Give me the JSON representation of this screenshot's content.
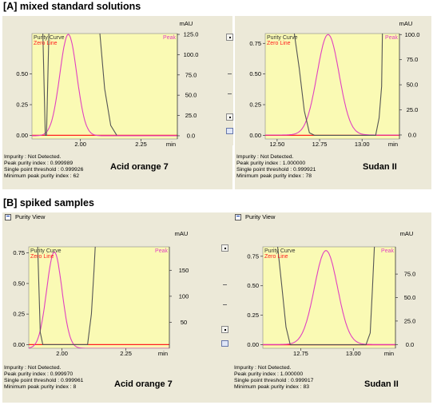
{
  "sections": [
    {
      "label": "[A] mixed standard solutions"
    },
    {
      "label": "[B] spiked samples"
    }
  ],
  "colors": {
    "plot_bg": "#fafab4",
    "purity_curve": "#555555",
    "peak": "#e040c0",
    "zero_line": "#ff2020",
    "window_bg": "#ece9d8"
  },
  "panels": [
    {
      "window_title": "",
      "compound": "Acid orange 7",
      "info": [
        "Impurity : Not Detected.",
        "Peak purity index : 0.999989",
        "Single point threshold : 0.999926",
        "Minimum peak purity index : 62"
      ],
      "chart_data": {
        "type": "line",
        "legend": [
          "Purity Curve",
          "Zero Line",
          "Peak"
        ],
        "x_ticks": [
          "2.00",
          "2.25"
        ],
        "x_unit": "min",
        "xlim": [
          1.8,
          2.4
        ],
        "y_left_ticks": [
          "0.00",
          "0.25",
          "0.50"
        ],
        "ylim_left": [
          -0.03,
          0.83
        ],
        "y_right_unit": "mAU",
        "y_right_ticks": [
          "0.0",
          "25.0",
          "50.0",
          "75.0",
          "100.0",
          "125.0"
        ],
        "ylim_right": [
          -4,
          126
        ],
        "peak": {
          "center": 1.95,
          "width": 0.035,
          "height": 125
        },
        "purity_curve": [
          {
            "x": 1.845,
            "y": 0.84
          },
          {
            "x": 1.855,
            "y": 0.0
          },
          {
            "x": 1.86,
            "y": 0.0
          },
          {
            "x": 1.87,
            "y": 0.84
          },
          {
            "x": 2.08,
            "y": 0.84
          },
          {
            "x": 2.1,
            "y": 0.38
          },
          {
            "x": 2.125,
            "y": 0.08
          },
          {
            "x": 2.15,
            "y": 0.0
          }
        ]
      }
    },
    {
      "window_title": "",
      "compound": "Sudan II",
      "info": [
        "Impurity : Not Detected.",
        "Peak purity index : 1.000000",
        "Single point threshold : 0.999921",
        "Minimum peak purity index : 78"
      ],
      "chart_data": {
        "type": "line",
        "legend": [
          "Purity Curve",
          "Zero Line",
          "Peak"
        ],
        "x_ticks": [
          "12.50",
          "12.75",
          "13.00"
        ],
        "x_unit": "min",
        "xlim": [
          12.43,
          13.22
        ],
        "y_left_ticks": [
          "0.00",
          "0.25",
          "0.50",
          "0.75"
        ],
        "ylim_left": [
          -0.03,
          0.83
        ],
        "y_right_unit": "mAU",
        "y_right_ticks": [
          "0.0",
          "25.0",
          "50.0",
          "75.0",
          "100.0"
        ],
        "ylim_right": [
          -4,
          101
        ],
        "peak": {
          "center": 12.8,
          "width": 0.065,
          "height": 100
        },
        "purity_curve": [
          {
            "x": 12.6,
            "y": 0.84
          },
          {
            "x": 12.63,
            "y": 0.55
          },
          {
            "x": 12.66,
            "y": 0.2
          },
          {
            "x": 12.69,
            "y": 0.02
          },
          {
            "x": 12.72,
            "y": 0.0
          },
          {
            "x": 13.08,
            "y": 0.0
          },
          {
            "x": 13.1,
            "y": 0.14
          },
          {
            "x": 13.115,
            "y": 0.4
          },
          {
            "x": 13.12,
            "y": 0.84
          }
        ]
      }
    },
    {
      "window_title": "Purity View",
      "compound": "Acid orange 7",
      "info": [
        "Impurity : Not Detected.",
        "Peak purity index : 0.999970",
        "Single point threshold : 0.999961",
        "Minimum peak purity index : 8"
      ],
      "chart_data": {
        "type": "line",
        "legend": [
          "Purity Curve",
          "Zero Line",
          "Peak"
        ],
        "x_ticks": [
          "2.00",
          "2.25"
        ],
        "x_unit": "min",
        "xlim": [
          1.87,
          2.42
        ],
        "y_left_ticks": [
          "0.00",
          "0.25",
          "0.50",
          "0.75"
        ],
        "ylim_left": [
          -0.03,
          0.8
        ],
        "y_right_unit": "mAU",
        "y_right_ticks": [
          "50",
          "100",
          "150"
        ],
        "ylim_right": [
          0,
          195
        ],
        "peak": {
          "center": 1.97,
          "width": 0.03,
          "height": 185
        },
        "purity_curve": [
          {
            "x": 1.905,
            "y": 0.8
          },
          {
            "x": 1.91,
            "y": 0.45
          },
          {
            "x": 1.915,
            "y": 0.1
          },
          {
            "x": 1.925,
            "y": 0.0
          },
          {
            "x": 2.1,
            "y": 0.0
          },
          {
            "x": 2.115,
            "y": 0.25
          },
          {
            "x": 2.125,
            "y": 0.6
          },
          {
            "x": 2.13,
            "y": 0.8
          }
        ]
      }
    },
    {
      "window_title": "Purity View",
      "compound": "Sudan II",
      "info": [
        "Impurity : Not Detected.",
        "Peak purity index : 1.000000",
        "Single point threshold : 0.999917",
        "Minimum peak purity index : 83"
      ],
      "chart_data": {
        "type": "line",
        "legend": [
          "Purity Curve",
          "Zero Line",
          "Peak"
        ],
        "x_ticks": [
          "12.75",
          "13.00"
        ],
        "x_unit": "min",
        "xlim": [
          12.57,
          13.2
        ],
        "y_left_ticks": [
          "0.00",
          "0.25",
          "0.50",
          "0.75"
        ],
        "ylim_left": [
          -0.03,
          0.83
        ],
        "y_right_unit": "mAU",
        "y_right_ticks": [
          "0.0",
          "25.0",
          "50.0",
          "75.0"
        ],
        "ylim_right": [
          -4,
          104
        ],
        "peak": {
          "center": 12.87,
          "width": 0.055,
          "height": 100
        },
        "purity_curve": [
          {
            "x": 12.64,
            "y": 0.84
          },
          {
            "x": 12.66,
            "y": 0.5
          },
          {
            "x": 12.68,
            "y": 0.15
          },
          {
            "x": 12.7,
            "y": 0.0
          },
          {
            "x": 13.06,
            "y": 0.0
          },
          {
            "x": 13.08,
            "y": 0.1
          },
          {
            "x": 13.09,
            "y": 0.45
          },
          {
            "x": 13.1,
            "y": 0.84
          }
        ]
      }
    }
  ]
}
